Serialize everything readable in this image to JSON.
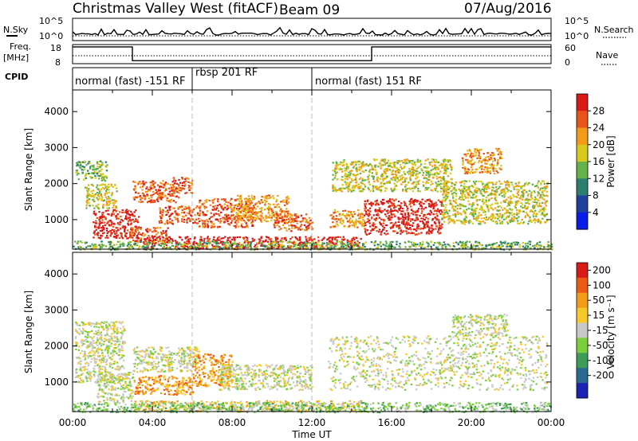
{
  "header": {
    "station": "Christmas Valley West (fitACF)",
    "beam": "Beam 09",
    "date": "07/Aug/2016"
  },
  "chart_data": [
    {
      "type": "line",
      "panel": "noise",
      "left_label": "N.Sky",
      "left_ticks": [
        "10^5",
        "10^0"
      ],
      "right_label": "N.Search",
      "right_ticks": [
        "10^5",
        "10^0"
      ]
    },
    {
      "type": "line",
      "panel": "frequency",
      "left_label_1": "Freq.",
      "left_label_2": "[MHz]",
      "left_ticks": [
        "18",
        "8"
      ],
      "right_label": "Nave",
      "right_ticks": [
        "60",
        "0"
      ],
      "freq_segments": [
        {
          "from_hour": 0,
          "to_hour": 3,
          "value": 16.8
        },
        {
          "from_hour": 3,
          "to_hour": 15,
          "value": 9.6
        },
        {
          "from_hour": 15,
          "to_hour": 24,
          "value": 16.8
        }
      ]
    },
    {
      "type": "table",
      "panel": "cpid",
      "label": "CPID",
      "segments": [
        {
          "from_hour": 0,
          "to_hour": 6,
          "name": "normal (fast) -151 RF"
        },
        {
          "from_hour": 6,
          "to_hour": 12,
          "name": "rbsp 201 RF"
        },
        {
          "from_hour": 12,
          "to_hour": 24,
          "name": "normal (fast) 151 RF"
        }
      ]
    },
    {
      "type": "heatmap",
      "panel": "power",
      "ylabel": "Slant Range [km]",
      "yticks": [
        "1000",
        "2000",
        "3000",
        "4000"
      ],
      "ylim": [
        180,
        4600
      ],
      "colorbar_label": "Power [dB]",
      "colorbar_ticks": [
        "4",
        "8",
        "12",
        "16",
        "20",
        "24",
        "28"
      ],
      "colorbar_colors": [
        "#0a1ce8",
        "#213f9c",
        "#2c7e6e",
        "#63b34a",
        "#d7c81c",
        "#f39a18",
        "#e8541a",
        "#d81b18"
      ],
      "scatter_regions": [
        {
          "from_hour": 0.1,
          "to_hour": 1.7,
          "low_km": 2100,
          "high_km": 2650,
          "level": 3
        },
        {
          "from_hour": 0.6,
          "to_hour": 2.2,
          "low_km": 1300,
          "high_km": 2000,
          "level": 4
        },
        {
          "from_hour": 1.0,
          "to_hour": 3.3,
          "low_km": 500,
          "high_km": 1300,
          "level": 7
        },
        {
          "from_hour": 2.8,
          "to_hour": 4.8,
          "low_km": 350,
          "high_km": 800,
          "level": 6
        },
        {
          "from_hour": 3.0,
          "to_hour": 5.3,
          "low_km": 1500,
          "high_km": 2100,
          "level": 6
        },
        {
          "from_hour": 5.0,
          "to_hour": 6.0,
          "low_km": 1750,
          "high_km": 2200,
          "level": 6
        },
        {
          "from_hour": 4.3,
          "to_hour": 6.3,
          "low_km": 900,
          "high_km": 1400,
          "level": 6
        },
        {
          "from_hour": 6.3,
          "to_hour": 9.0,
          "low_km": 800,
          "high_km": 1600,
          "level": 6
        },
        {
          "from_hour": 8.2,
          "to_hour": 10.8,
          "low_km": 950,
          "high_km": 1700,
          "level": 5
        },
        {
          "from_hour": 10.0,
          "to_hour": 12.0,
          "low_km": 700,
          "high_km": 1200,
          "level": 6
        },
        {
          "from_hour": 12.8,
          "to_hour": 14.6,
          "low_km": 800,
          "high_km": 1300,
          "level": 5
        },
        {
          "from_hour": 14.6,
          "to_hour": 18.5,
          "low_km": 600,
          "high_km": 1600,
          "level": 7
        },
        {
          "from_hour": 13.0,
          "to_hour": 19.0,
          "low_km": 1800,
          "high_km": 2700,
          "level": 4
        },
        {
          "from_hour": 18.5,
          "to_hour": 23.8,
          "low_km": 900,
          "high_km": 2100,
          "level": 4
        },
        {
          "from_hour": 19.5,
          "to_hour": 21.5,
          "low_km": 2300,
          "high_km": 3000,
          "level": 5
        },
        {
          "from_hour": 3.5,
          "to_hour": 14.5,
          "low_km": 200,
          "high_km": 550,
          "level": 7
        },
        {
          "from_hour": 0.0,
          "to_hour": 24.0,
          "low_km": 180,
          "high_km": 420,
          "level": 3
        }
      ]
    },
    {
      "type": "heatmap",
      "panel": "velocity",
      "ylabel": "Slant Range [km]",
      "yticks": [
        "1000",
        "2000",
        "3000",
        "4000"
      ],
      "ylim": [
        180,
        4600
      ],
      "colorbar_label": "Velocity [m s⁻¹]",
      "colorbar_ticks": [
        "200",
        "100",
        "50",
        "15",
        "-15",
        "-50",
        "-100",
        "-200"
      ],
      "colorbar_colors": [
        "#1a23b4",
        "#2a6a90",
        "#3c9d58",
        "#7ccf3c",
        "#c8c8c8",
        "#f6c82a",
        "#f39a18",
        "#ed5a16",
        "#d81b18"
      ],
      "xticks": [
        "00:00",
        "04:00",
        "08:00",
        "12:00",
        "16:00",
        "20:00",
        "00:00"
      ],
      "xlabel": "Time UT",
      "scatter_regions": [
        {
          "from_hour": 0.1,
          "to_hour": 2.6,
          "low_km": 1000,
          "high_km": 2700,
          "level": 4
        },
        {
          "from_hour": 1.2,
          "to_hour": 3.0,
          "low_km": 450,
          "high_km": 1300,
          "level": 4
        },
        {
          "from_hour": 3.0,
          "to_hour": 6.3,
          "low_km": 1300,
          "high_km": 2000,
          "level": 4
        },
        {
          "from_hour": 3.0,
          "to_hour": 6.0,
          "low_km": 650,
          "high_km": 1200,
          "level": 6
        },
        {
          "from_hour": 6.0,
          "to_hour": 8.0,
          "low_km": 900,
          "high_km": 1800,
          "level": 6
        },
        {
          "from_hour": 7.3,
          "to_hour": 12.0,
          "low_km": 800,
          "high_km": 1500,
          "level": 4
        },
        {
          "from_hour": 12.8,
          "to_hour": 23.8,
          "low_km": 800,
          "high_km": 2300,
          "level": 4
        },
        {
          "from_hour": 19.0,
          "to_hour": 21.8,
          "low_km": 2300,
          "high_km": 2900,
          "level": 4
        },
        {
          "from_hour": 3.0,
          "to_hour": 14.5,
          "low_km": 200,
          "high_km": 500,
          "level": 5
        },
        {
          "from_hour": 0.0,
          "to_hour": 24.0,
          "low_km": 180,
          "high_km": 450,
          "level": 3
        }
      ]
    }
  ]
}
